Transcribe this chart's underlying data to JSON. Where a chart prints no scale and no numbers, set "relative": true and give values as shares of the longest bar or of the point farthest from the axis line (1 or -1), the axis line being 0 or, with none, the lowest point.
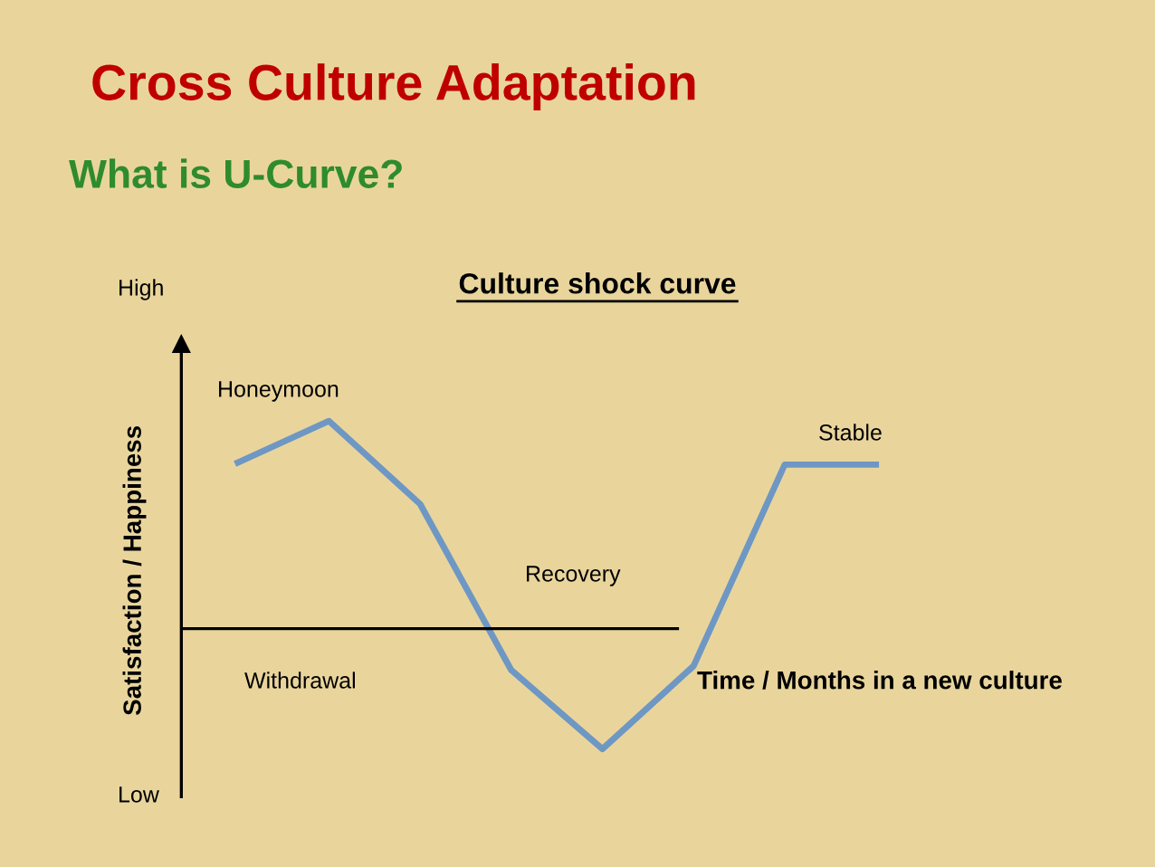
{
  "chart_data": {
    "type": "line",
    "title": "Cross Culture Adaptation",
    "subtitle": "What is U-Curve?",
    "annotations": [
      "Culture shock curve",
      "High",
      "Low",
      "Honeymoon",
      "Withdrawal",
      "Recovery",
      "Stable"
    ],
    "xlabel": "Time / Months in a new culture",
    "ylabel": "Satisfaction / Happiness",
    "categories": [
      null,
      null,
      null,
      null,
      null,
      null,
      null,
      null
    ],
    "relative": true,
    "series": [
      {
        "color": "#6e97c4",
        "values": [
          0.8,
          1.0,
          0.6,
          -0.2,
          -0.58,
          -0.18,
          0.79,
          0.79
        ]
      }
    ],
    "ref_lines": [
      {
        "axis": "y",
        "value": 0,
        "color": "#000000"
      }
    ],
    "marker": "none",
    "line_style": "solid",
    "legend": false
  }
}
